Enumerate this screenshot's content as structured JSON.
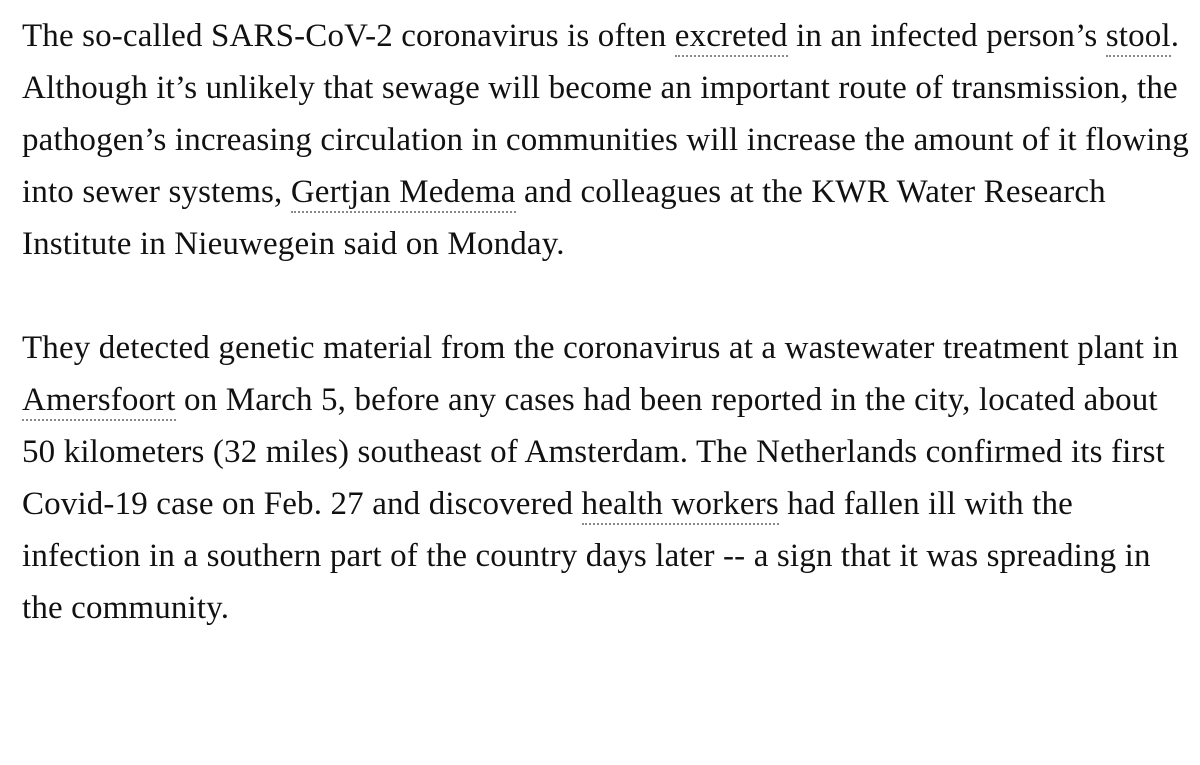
{
  "article": {
    "paragraph_1": {
      "t1": "The so-called SARS-CoV-2 coronavirus is often ",
      "link_excreted": "excreted",
      "t2": " in an infected person’s ",
      "link_stool": "stool",
      "t3": ". Although it’s unlikely that sewage will become an important route of transmission, the pathogen’s increasing circulation in communities will increase the amount of it flowing into sewer systems, ",
      "link_medema": "Gertjan Medema",
      "t4": " and colleagues at the KWR Water Research Institute in Nieuwegein said on Monday."
    },
    "paragraph_2": {
      "t1": "They detected genetic material from the coronavirus at a wastewater treatment plant in ",
      "link_amersfoort": "Amersfoort",
      "t2": " on March 5, before any cases had been reported in the city, located about 50 kilometers (32 miles) southeast of Amsterdam. The Netherlands confirmed its first Covid-19 case on Feb. 27 and discovered ",
      "link_health_workers": "health workers",
      "t3": " had fallen ill with the infection in a southern part of the country days later -- a sign that it was spreading in the community."
    }
  }
}
